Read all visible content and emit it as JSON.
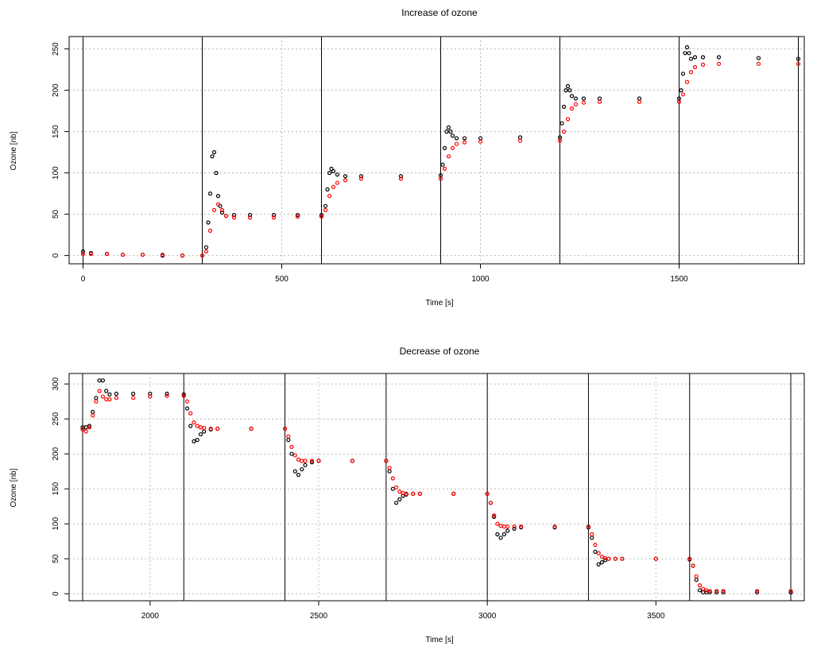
{
  "chart_data": [
    {
      "type": "scatter",
      "title": "Increase of ozone",
      "xlabel": "Time [s]",
      "ylabel": "Ozone [nb]",
      "xlim": [
        -35,
        1815
      ],
      "ylim": [
        -10,
        265
      ],
      "xticks": [
        0,
        500,
        1000,
        1500
      ],
      "yticks": [
        0,
        50,
        100,
        150,
        200,
        250
      ],
      "grid": true,
      "legend": "none",
      "step_boundaries": [
        0,
        300,
        600,
        900,
        1200,
        1500,
        1800
      ],
      "series": [
        {
          "color": "#000000",
          "marker": "open-circle",
          "x": [
            0,
            20,
            60,
            100,
            150,
            200,
            250,
            300,
            310,
            315,
            320,
            325,
            330,
            335,
            340,
            345,
            350,
            360,
            380,
            420,
            480,
            540,
            600,
            610,
            615,
            620,
            625,
            630,
            640,
            660,
            700,
            800,
            900,
            905,
            910,
            915,
            920,
            925,
            930,
            940,
            960,
            1000,
            1100,
            1200,
            1205,
            1210,
            1215,
            1220,
            1225,
            1230,
            1240,
            1260,
            1300,
            1400,
            1500,
            1505,
            1510,
            1515,
            1520,
            1525,
            1530,
            1540,
            1560,
            1600,
            1700,
            1800
          ],
          "y": [
            5,
            3,
            2,
            1,
            1,
            0,
            0,
            0,
            10,
            40,
            75,
            120,
            125,
            100,
            72,
            60,
            52,
            48,
            49,
            49,
            49,
            49,
            49,
            60,
            80,
            100,
            105,
            102,
            98,
            96,
            96,
            96,
            97,
            110,
            130,
            150,
            155,
            150,
            145,
            142,
            142,
            142,
            143,
            143,
            160,
            180,
            200,
            205,
            200,
            193,
            190,
            190,
            190,
            190,
            190,
            200,
            220,
            245,
            252,
            245,
            238,
            240,
            240,
            240,
            239,
            238
          ]
        },
        {
          "color": "#ff0000",
          "marker": "open-circle",
          "x": [
            0,
            20,
            60,
            100,
            150,
            200,
            250,
            300,
            310,
            320,
            330,
            340,
            350,
            360,
            380,
            420,
            480,
            540,
            600,
            610,
            620,
            630,
            640,
            660,
            700,
            800,
            900,
            910,
            920,
            930,
            940,
            960,
            1000,
            1100,
            1200,
            1210,
            1220,
            1230,
            1240,
            1260,
            1300,
            1400,
            1500,
            1510,
            1520,
            1530,
            1540,
            1560,
            1600,
            1700,
            1800
          ],
          "y": [
            2,
            2,
            2,
            1,
            1,
            1,
            0,
            0,
            5,
            30,
            55,
            62,
            55,
            48,
            46,
            46,
            46,
            47,
            47,
            55,
            72,
            83,
            88,
            91,
            93,
            93,
            93,
            105,
            120,
            130,
            135,
            137,
            138,
            139,
            139,
            150,
            165,
            178,
            183,
            185,
            186,
            186,
            186,
            195,
            210,
            222,
            228,
            231,
            232,
            232,
            232
          ]
        }
      ]
    },
    {
      "type": "scatter",
      "title": "Decrease of ozone",
      "xlabel": "Time [s]",
      "ylabel": "Ozone [nb]",
      "xlim": [
        1760,
        3940
      ],
      "ylim": [
        -10,
        315
      ],
      "xticks": [
        2000,
        2500,
        3000,
        3500
      ],
      "yticks": [
        0,
        50,
        100,
        150,
        200,
        250,
        300
      ],
      "grid": true,
      "legend": "none",
      "step_boundaries": [
        1800,
        2100,
        2400,
        2700,
        3000,
        3300,
        3600,
        3900
      ],
      "series": [
        {
          "color": "#000000",
          "marker": "open-circle",
          "x": [
            1800,
            1810,
            1820,
            1830,
            1840,
            1850,
            1860,
            1870,
            1880,
            1900,
            1950,
            2000,
            2050,
            2100,
            2110,
            2120,
            2130,
            2140,
            2150,
            2160,
            2180,
            2200,
            2300,
            2400,
            2410,
            2420,
            2430,
            2440,
            2450,
            2460,
            2480,
            2500,
            2600,
            2700,
            2710,
            2720,
            2730,
            2740,
            2750,
            2760,
            2780,
            2800,
            2900,
            3000,
            3010,
            3020,
            3030,
            3040,
            3050,
            3060,
            3080,
            3100,
            3200,
            3300,
            3310,
            3320,
            3330,
            3340,
            3350,
            3360,
            3380,
            3400,
            3500,
            3600,
            3610,
            3620,
            3630,
            3640,
            3650,
            3660,
            3680,
            3700,
            3800,
            3900
          ],
          "y": [
            238,
            238,
            240,
            260,
            280,
            305,
            305,
            290,
            285,
            286,
            286,
            286,
            286,
            285,
            265,
            240,
            218,
            220,
            228,
            232,
            235,
            236,
            236,
            236,
            220,
            200,
            175,
            170,
            178,
            184,
            188,
            190,
            190,
            190,
            175,
            150,
            130,
            135,
            140,
            142,
            143,
            143,
            143,
            143,
            130,
            110,
            85,
            80,
            85,
            90,
            93,
            95,
            95,
            95,
            80,
            60,
            42,
            45,
            48,
            50,
            50,
            50,
            50,
            49,
            40,
            20,
            5,
            2,
            2,
            2,
            2,
            2,
            2,
            2
          ]
        },
        {
          "color": "#ff0000",
          "marker": "open-circle",
          "x": [
            1800,
            1810,
            1820,
            1830,
            1840,
            1850,
            1860,
            1870,
            1880,
            1900,
            1950,
            2000,
            2050,
            2100,
            2110,
            2120,
            2130,
            2140,
            2150,
            2160,
            2180,
            2200,
            2300,
            2400,
            2410,
            2420,
            2430,
            2440,
            2450,
            2460,
            2480,
            2500,
            2600,
            2700,
            2710,
            2720,
            2730,
            2740,
            2750,
            2760,
            2780,
            2800,
            2900,
            3000,
            3010,
            3020,
            3030,
            3040,
            3050,
            3060,
            3080,
            3100,
            3200,
            3300,
            3310,
            3320,
            3330,
            3340,
            3350,
            3360,
            3380,
            3400,
            3500,
            3600,
            3610,
            3620,
            3630,
            3640,
            3650,
            3660,
            3680,
            3700,
            3800,
            3900
          ],
          "y": [
            235,
            232,
            238,
            255,
            275,
            290,
            282,
            278,
            278,
            280,
            280,
            282,
            283,
            283,
            275,
            258,
            245,
            240,
            238,
            237,
            236,
            236,
            236,
            236,
            225,
            210,
            198,
            192,
            190,
            190,
            190,
            190,
            190,
            190,
            180,
            165,
            152,
            146,
            144,
            143,
            143,
            143,
            143,
            143,
            130,
            112,
            100,
            97,
            96,
            96,
            96,
            96,
            96,
            96,
            85,
            70,
            58,
            53,
            51,
            50,
            50,
            50,
            50,
            50,
            40,
            25,
            12,
            7,
            5,
            4,
            4,
            4,
            4,
            4
          ]
        }
      ]
    }
  ]
}
